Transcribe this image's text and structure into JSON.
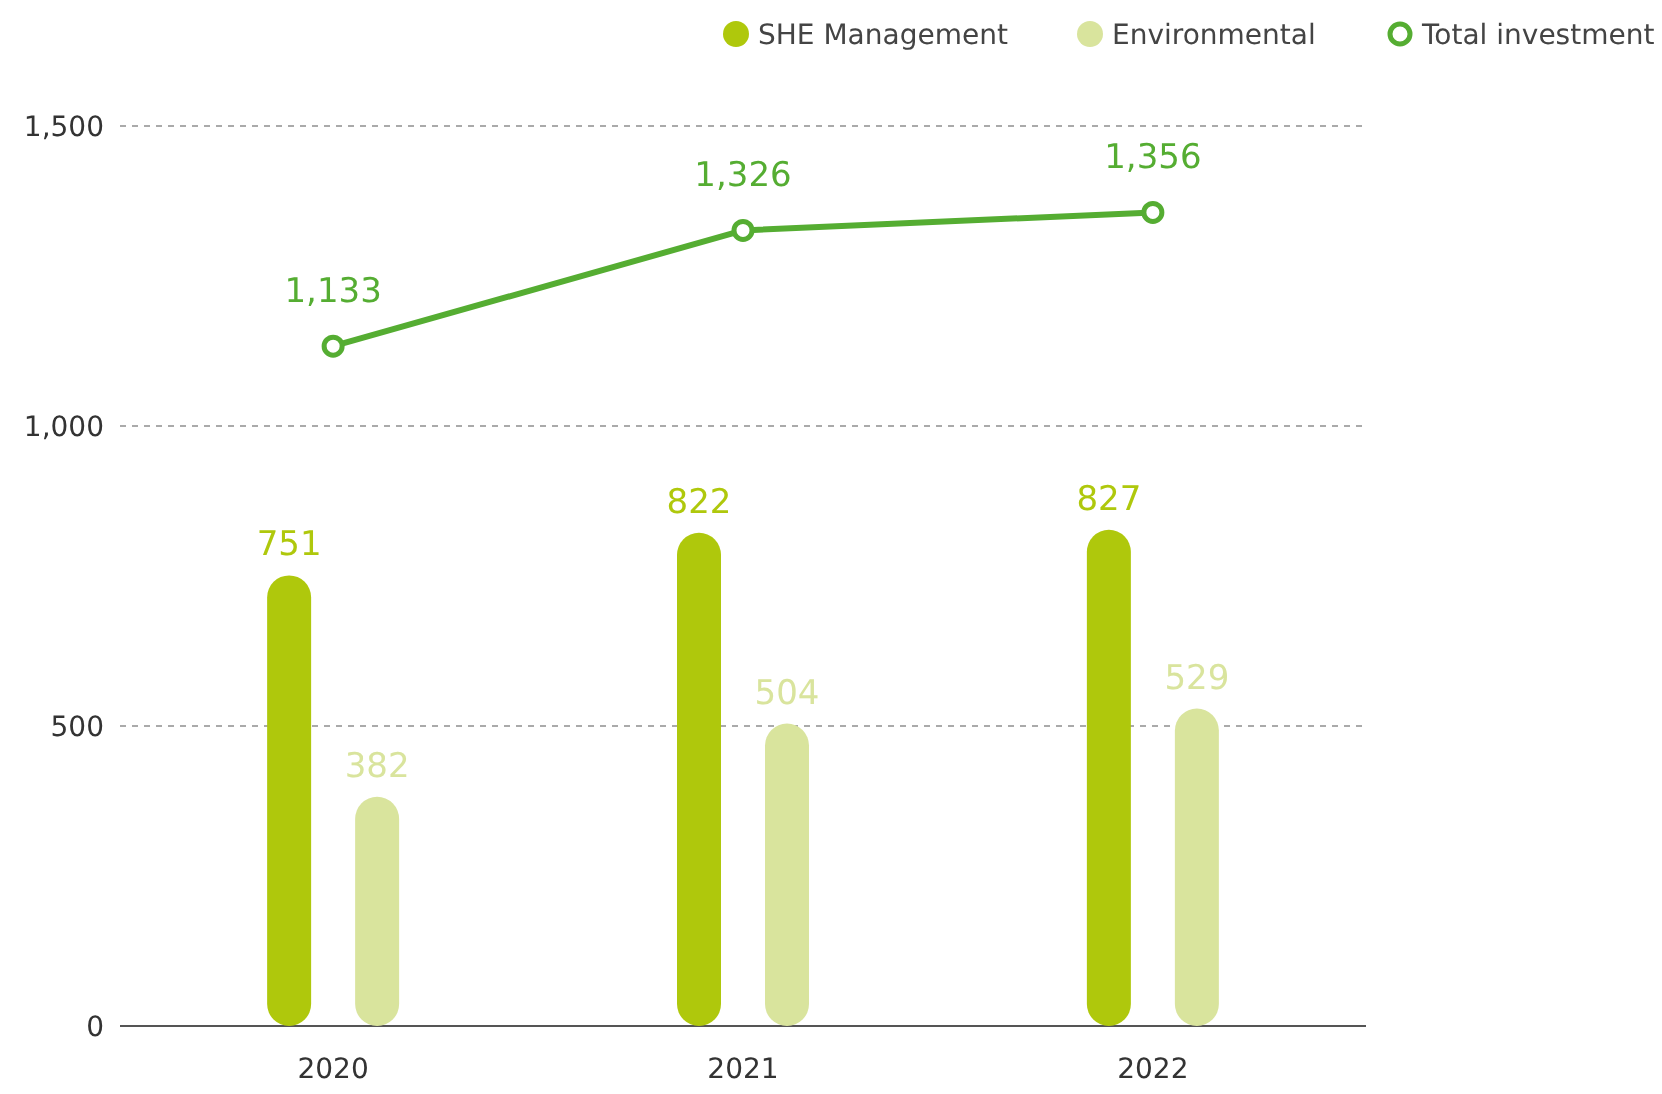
{
  "chart_data": {
    "type": "bar",
    "categories": [
      "2020",
      "2021",
      "2022"
    ],
    "series": [
      {
        "name": "SHE Management",
        "color": "#afc80c",
        "values": [
          751,
          822,
          827
        ],
        "value_labels": [
          "751",
          "822",
          "827"
        ]
      },
      {
        "name": "Environmental",
        "color": "#d9e49d",
        "values": [
          382,
          504,
          529
        ],
        "value_labels": [
          "382",
          "504",
          "529"
        ]
      },
      {
        "name": "Total investment",
        "type": "line",
        "color": "#55ad32",
        "values": [
          1133,
          1326,
          1356
        ],
        "value_labels": [
          "1,133",
          "1,326",
          "1,356"
        ],
        "marker": "circle"
      }
    ],
    "ylim": [
      0,
      1500
    ],
    "yticks": [
      0,
      500,
      {
        "value": 1000,
        "label": "1,000"
      },
      {
        "value": 1500,
        "label": "1,500"
      }
    ],
    "grid": "y",
    "legend": "top right"
  }
}
